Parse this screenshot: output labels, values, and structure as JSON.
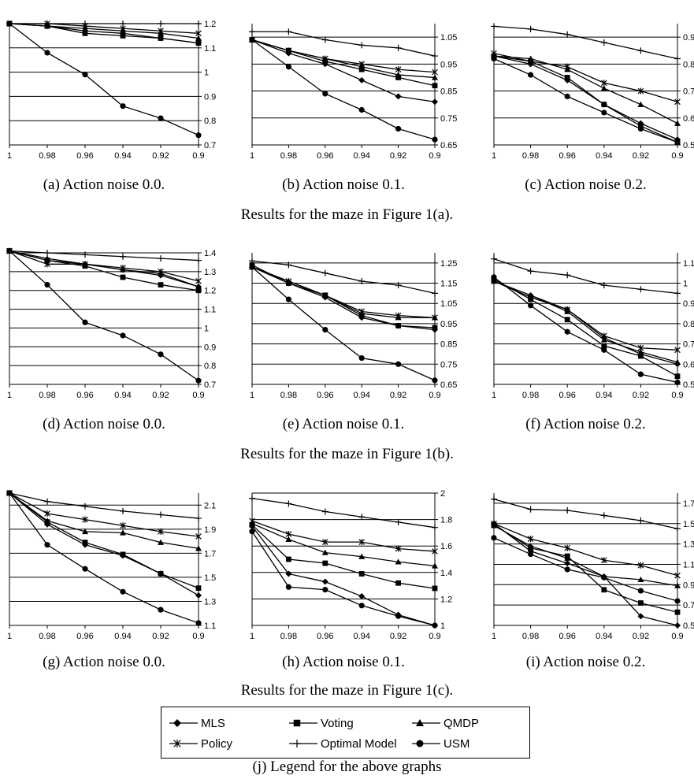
{
  "row_captions": [
    "Results for the maze in Figure 1(a).",
    "Results for the maze in Figure 1(b).",
    "Results for the maze in Figure 1(c)."
  ],
  "legend": {
    "caption": "(j) Legend for the above graphs",
    "entries": [
      {
        "name": "MLS",
        "marker": "diamond"
      },
      {
        "name": "Voting",
        "marker": "square"
      },
      {
        "name": "QMDP",
        "marker": "triangle"
      },
      {
        "name": "Policy",
        "marker": "star"
      },
      {
        "name": "Optimal Model",
        "marker": "plus"
      },
      {
        "name": "USM",
        "marker": "circle"
      }
    ]
  },
  "chart_data": [
    {
      "type": "line",
      "caption": "(a)  Action noise 0.0.",
      "x": [
        1,
        0.98,
        0.96,
        0.94,
        0.92,
        0.9
      ],
      "xticks": [
        "1",
        "0.98",
        "0.96",
        "0.94",
        "0.92",
        "0.9"
      ],
      "ylim": [
        0.7,
        1.2
      ],
      "yticks": [
        0.7,
        0.8,
        0.9,
        1,
        1.1,
        1.2
      ],
      "yticklabels": [
        "0.7",
        "0.8",
        "0.9",
        "1",
        "1.1",
        "1.2"
      ],
      "series": [
        {
          "name": "MLS",
          "values": [
            1.2,
            1.19,
            1.17,
            1.16,
            1.14,
            1.12
          ]
        },
        {
          "name": "Voting",
          "values": [
            1.2,
            1.19,
            1.16,
            1.15,
            1.14,
            1.12
          ]
        },
        {
          "name": "QMDP",
          "values": [
            1.2,
            1.19,
            1.18,
            1.17,
            1.16,
            1.14
          ]
        },
        {
          "name": "Policy",
          "values": [
            1.2,
            1.2,
            1.19,
            1.18,
            1.17,
            1.16
          ]
        },
        {
          "name": "Optimal Model",
          "values": [
            1.2,
            1.2,
            1.2,
            1.2,
            1.2,
            1.2
          ]
        },
        {
          "name": "USM",
          "values": [
            1.2,
            1.08,
            0.99,
            0.86,
            0.81,
            0.74
          ]
        }
      ]
    },
    {
      "type": "line",
      "caption": "(b)  Action noise 0.1.",
      "x": [
        1,
        0.98,
        0.96,
        0.94,
        0.92,
        0.9
      ],
      "xticks": [
        "1",
        "0.98",
        "0.96",
        "0.94",
        "0.92",
        "0.9"
      ],
      "ylim": [
        0.65,
        1.1
      ],
      "yticks": [
        0.65,
        0.75,
        0.85,
        0.95,
        1.05
      ],
      "yticklabels": [
        "0.65",
        "0.75",
        "0.85",
        "0.95",
        "1.05"
      ],
      "series": [
        {
          "name": "MLS",
          "values": [
            1.04,
            0.99,
            0.95,
            0.89,
            0.83,
            0.81
          ]
        },
        {
          "name": "Voting",
          "values": [
            1.04,
            1.0,
            0.96,
            0.93,
            0.9,
            0.87
          ]
        },
        {
          "name": "QMDP",
          "values": [
            1.04,
            1.0,
            0.97,
            0.94,
            0.91,
            0.9
          ]
        },
        {
          "name": "Policy",
          "values": [
            1.04,
            1.0,
            0.97,
            0.95,
            0.93,
            0.92
          ]
        },
        {
          "name": "Optimal Model",
          "values": [
            1.07,
            1.07,
            1.04,
            1.02,
            1.01,
            0.98
          ]
        },
        {
          "name": "USM",
          "values": [
            1.04,
            0.94,
            0.84,
            0.78,
            0.71,
            0.67
          ]
        }
      ]
    },
    {
      "type": "line",
      "caption": "(c)  Action noise 0.2.",
      "x": [
        1,
        0.98,
        0.96,
        0.94,
        0.92,
        0.9
      ],
      "xticks": [
        "1",
        "0.98",
        "0.96",
        "0.94",
        "0.92",
        "0.9"
      ],
      "ylim": [
        0.5,
        0.95
      ],
      "yticks": [
        0.5,
        0.6,
        0.7,
        0.8,
        0.9
      ],
      "yticklabels": [
        "0.5",
        "0.6",
        "0.7",
        "0.8",
        "0.9"
      ],
      "series": [
        {
          "name": "MLS",
          "values": [
            0.83,
            0.8,
            0.74,
            0.65,
            0.58,
            0.52
          ]
        },
        {
          "name": "Voting",
          "values": [
            0.83,
            0.81,
            0.75,
            0.65,
            0.57,
            0.51
          ]
        },
        {
          "name": "QMDP",
          "values": [
            0.83,
            0.82,
            0.78,
            0.71,
            0.65,
            0.58
          ]
        },
        {
          "name": "Policy",
          "values": [
            0.84,
            0.81,
            0.79,
            0.73,
            0.7,
            0.66
          ]
        },
        {
          "name": "Optimal Model",
          "values": [
            0.94,
            0.93,
            0.91,
            0.88,
            0.85,
            0.82
          ]
        },
        {
          "name": "USM",
          "values": [
            0.82,
            0.76,
            0.68,
            0.62,
            0.56,
            0.51
          ]
        }
      ]
    },
    {
      "type": "line",
      "caption": "(d)  Action noise 0.0.",
      "x": [
        1,
        0.98,
        0.96,
        0.94,
        0.92,
        0.9
      ],
      "xticks": [
        "1",
        "0.98",
        "0.96",
        "0.94",
        "0.92",
        "0.9"
      ],
      "ylim": [
        0.7,
        1.4
      ],
      "yticks": [
        0.7,
        0.8,
        0.9,
        1,
        1.1,
        1.2,
        1.3,
        1.4
      ],
      "yticklabels": [
        "0.7",
        "0.8",
        "0.9",
        "1",
        "1.1",
        "1.2",
        "1.3",
        "1.4"
      ],
      "series": [
        {
          "name": "MLS",
          "values": [
            1.41,
            1.36,
            1.34,
            1.31,
            1.28,
            1.22
          ]
        },
        {
          "name": "Voting",
          "values": [
            1.41,
            1.36,
            1.33,
            1.27,
            1.23,
            1.2
          ]
        },
        {
          "name": "QMDP",
          "values": [
            1.41,
            1.37,
            1.34,
            1.31,
            1.29,
            1.22
          ]
        },
        {
          "name": "Policy",
          "values": [
            1.41,
            1.34,
            1.34,
            1.32,
            1.3,
            1.25
          ]
        },
        {
          "name": "Optimal Model",
          "values": [
            1.41,
            1.4,
            1.39,
            1.38,
            1.37,
            1.36
          ]
        },
        {
          "name": "USM",
          "values": [
            1.41,
            1.23,
            1.03,
            0.96,
            0.86,
            0.72
          ]
        }
      ]
    },
    {
      "type": "line",
      "caption": "(e)  Action noise 0.1.",
      "x": [
        1,
        0.98,
        0.96,
        0.94,
        0.92,
        0.9
      ],
      "xticks": [
        "1",
        "0.98",
        "0.96",
        "0.94",
        "0.92",
        "0.9"
      ],
      "ylim": [
        0.65,
        1.3
      ],
      "yticks": [
        0.65,
        0.75,
        0.85,
        0.95,
        1.05,
        1.15,
        1.25
      ],
      "yticklabels": [
        "0.65",
        "0.75",
        "0.85",
        "0.95",
        "1.05",
        "1.15",
        "1.25"
      ],
      "series": [
        {
          "name": "MLS",
          "values": [
            1.23,
            1.15,
            1.08,
            0.98,
            0.94,
            0.92
          ]
        },
        {
          "name": "Voting",
          "values": [
            1.24,
            1.15,
            1.09,
            0.99,
            0.94,
            0.93
          ]
        },
        {
          "name": "QMDP",
          "values": [
            1.23,
            1.16,
            1.09,
            1.0,
            0.98,
            0.98
          ]
        },
        {
          "name": "Policy",
          "values": [
            1.23,
            1.16,
            1.09,
            1.01,
            0.99,
            0.98
          ]
        },
        {
          "name": "Optimal Model",
          "values": [
            1.26,
            1.24,
            1.2,
            1.16,
            1.14,
            1.1
          ]
        },
        {
          "name": "USM",
          "values": [
            1.23,
            1.07,
            0.92,
            0.78,
            0.75,
            0.67
          ]
        }
      ]
    },
    {
      "type": "line",
      "caption": "(f)  Action noise 0.2.",
      "x": [
        1,
        0.98,
        0.96,
        0.94,
        0.92,
        0.9
      ],
      "xticks": [
        "1",
        "0.98",
        "0.96",
        "0.94",
        "0.92",
        "0.9"
      ],
      "ylim": [
        0.5,
        1.15
      ],
      "yticks": [
        0.5,
        0.6,
        0.7,
        0.8,
        0.9,
        1,
        1.1
      ],
      "yticklabels": [
        "0.5",
        "0.6",
        "0.7",
        "0.8",
        "0.9",
        "1",
        "1.1"
      ],
      "series": [
        {
          "name": "MLS",
          "values": [
            1.01,
            0.94,
            0.87,
            0.73,
            0.65,
            0.6
          ]
        },
        {
          "name": "Voting",
          "values": [
            1.02,
            0.92,
            0.82,
            0.69,
            0.64,
            0.54
          ]
        },
        {
          "name": "QMDP",
          "values": [
            1.01,
            0.94,
            0.86,
            0.72,
            0.66,
            0.61
          ]
        },
        {
          "name": "Policy",
          "values": [
            1.01,
            0.93,
            0.87,
            0.74,
            0.68,
            0.67
          ]
        },
        {
          "name": "Optimal Model",
          "values": [
            1.12,
            1.06,
            1.04,
            0.99,
            0.97,
            0.95
          ]
        },
        {
          "name": "USM",
          "values": [
            1.03,
            0.89,
            0.76,
            0.67,
            0.55,
            0.51
          ]
        }
      ]
    },
    {
      "type": "line",
      "caption": "(g)  Action noise 0.0.",
      "x": [
        1,
        0.98,
        0.96,
        0.94,
        0.92,
        0.9
      ],
      "xticks": [
        "1",
        "0.98",
        "0.96",
        "0.94",
        "0.92",
        "0.9"
      ],
      "ylim": [
        1.1,
        2.2
      ],
      "yticks": [
        1.1,
        1.3,
        1.5,
        1.7,
        1.9,
        2.1
      ],
      "yticklabels": [
        "1.1",
        "1.3",
        "1.5",
        "1.7",
        "1.9",
        "2.1"
      ],
      "series": [
        {
          "name": "MLS",
          "values": [
            2.2,
            1.94,
            1.77,
            1.68,
            1.53,
            1.35
          ]
        },
        {
          "name": "Voting",
          "values": [
            2.2,
            1.96,
            1.79,
            1.69,
            1.53,
            1.41
          ]
        },
        {
          "name": "QMDP",
          "values": [
            2.2,
            1.97,
            1.88,
            1.87,
            1.79,
            1.74
          ]
        },
        {
          "name": "Policy",
          "values": [
            2.2,
            2.03,
            1.98,
            1.93,
            1.88,
            1.84
          ]
        },
        {
          "name": "Optimal Model",
          "values": [
            2.2,
            2.13,
            2.09,
            2.05,
            2.02,
            1.99
          ]
        },
        {
          "name": "USM",
          "values": [
            2.2,
            1.77,
            1.57,
            1.38,
            1.23,
            1.12
          ]
        }
      ]
    },
    {
      "type": "line",
      "caption": "(h)  Action noise 0.1.",
      "x": [
        1,
        0.98,
        0.96,
        0.94,
        0.92,
        0.9
      ],
      "xticks": [
        "1",
        "0.98",
        "0.96",
        "0.94",
        "0.92",
        "0.9"
      ],
      "ylim": [
        1,
        2
      ],
      "yticks": [
        1,
        1.2,
        1.4,
        1.6,
        1.8,
        2
      ],
      "yticklabels": [
        "1",
        "1.2",
        "1.4",
        "1.6",
        "1.8",
        "2"
      ],
      "series": [
        {
          "name": "MLS",
          "values": [
            1.75,
            1.39,
            1.33,
            1.22,
            1.08,
            1.0
          ]
        },
        {
          "name": "Voting",
          "values": [
            1.76,
            1.5,
            1.47,
            1.39,
            1.32,
            1.28
          ]
        },
        {
          "name": "QMDP",
          "values": [
            1.77,
            1.65,
            1.55,
            1.52,
            1.48,
            1.45
          ]
        },
        {
          "name": "Policy",
          "values": [
            1.79,
            1.69,
            1.63,
            1.63,
            1.58,
            1.56
          ]
        },
        {
          "name": "Optimal Model",
          "values": [
            1.96,
            1.92,
            1.86,
            1.82,
            1.78,
            1.74
          ]
        },
        {
          "name": "USM",
          "values": [
            1.71,
            1.29,
            1.27,
            1.15,
            1.07,
            1.0
          ]
        }
      ]
    },
    {
      "type": "line",
      "caption": "(i)  Action noise 0.2.",
      "x": [
        1,
        0.98,
        0.96,
        0.94,
        0.92,
        0.9
      ],
      "xticks": [
        "1",
        "0.98",
        "0.96",
        "0.94",
        "0.92",
        "0.9"
      ],
      "ylim": [
        0.5,
        1.8
      ],
      "yticks": [
        0.5,
        0.7,
        0.9,
        1.1,
        1.3,
        1.5,
        1.7
      ],
      "yticklabels": [
        "0.5",
        "0.7",
        "0.9",
        "1.1",
        "1.3",
        "1.5",
        "1.7"
      ],
      "series": [
        {
          "name": "MLS",
          "values": [
            1.5,
            1.23,
            1.11,
            0.98,
            0.59,
            0.5
          ]
        },
        {
          "name": "Voting",
          "values": [
            1.49,
            1.26,
            1.18,
            0.85,
            0.72,
            0.63
          ]
        },
        {
          "name": "QMDP",
          "values": [
            1.48,
            1.28,
            1.16,
            0.98,
            0.95,
            0.89
          ]
        },
        {
          "name": "Policy",
          "values": [
            1.5,
            1.35,
            1.26,
            1.14,
            1.09,
            0.99
          ]
        },
        {
          "name": "Optimal Model",
          "values": [
            1.74,
            1.64,
            1.63,
            1.58,
            1.53,
            1.45
          ]
        },
        {
          "name": "USM",
          "values": [
            1.36,
            1.2,
            1.05,
            0.97,
            0.84,
            0.74
          ]
        }
      ]
    }
  ]
}
